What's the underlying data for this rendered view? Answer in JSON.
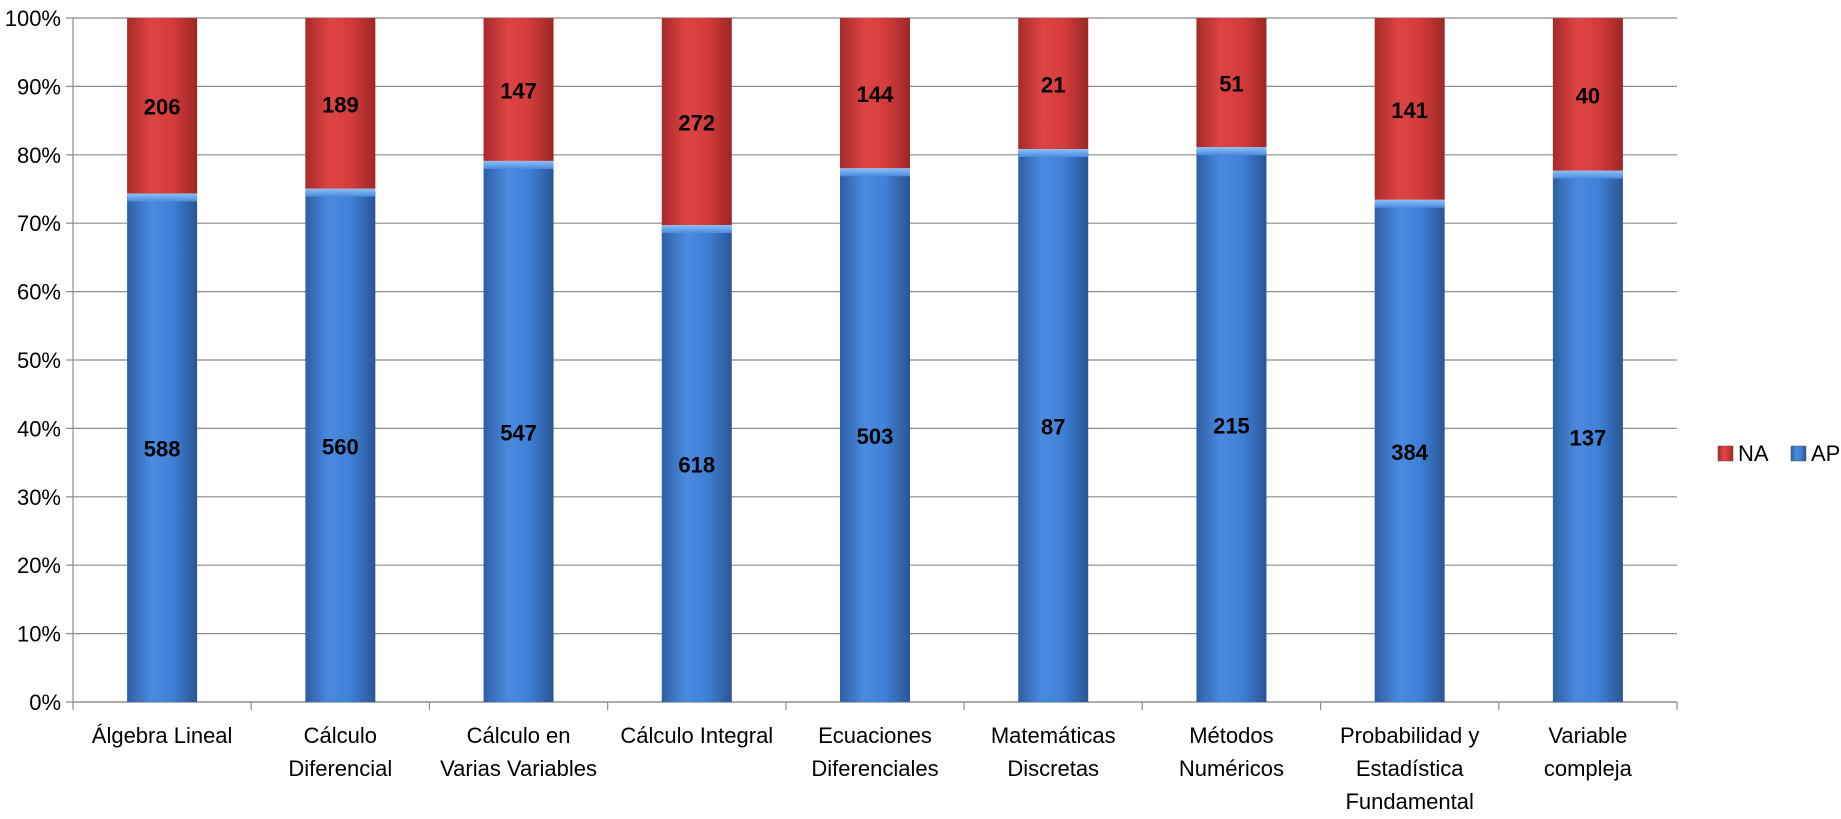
{
  "chart_data": {
    "type": "bar",
    "stacked": "percent",
    "categories": [
      [
        "Álgebra Lineal"
      ],
      [
        "Cálculo",
        "Diferencial"
      ],
      [
        "Cálculo en",
        "Varias Variables"
      ],
      [
        "Cálculo Integral"
      ],
      [
        "Ecuaciones",
        "Diferenciales"
      ],
      [
        "Matemáticas",
        "Discretas"
      ],
      [
        "Métodos",
        "Numéricos"
      ],
      [
        "Probabilidad y",
        "Estadística",
        "Fundamental"
      ],
      [
        "Variable",
        "compleja"
      ]
    ],
    "series": [
      {
        "name": "AP",
        "color": "#3a78cc",
        "values": [
          588,
          560,
          547,
          618,
          503,
          87,
          215,
          384,
          137
        ]
      },
      {
        "name": "NA",
        "color": "#cc3333",
        "values": [
          206,
          189,
          147,
          272,
          144,
          21,
          51,
          141,
          40
        ]
      }
    ],
    "y_ticks": [
      "0%",
      "10%",
      "20%",
      "30%",
      "40%",
      "50%",
      "60%",
      "70%",
      "80%",
      "90%",
      "100%"
    ],
    "ylim": [
      0,
      100
    ],
    "grid": true,
    "legend": {
      "placement": "right",
      "entries": [
        "NA",
        "AP"
      ]
    }
  }
}
